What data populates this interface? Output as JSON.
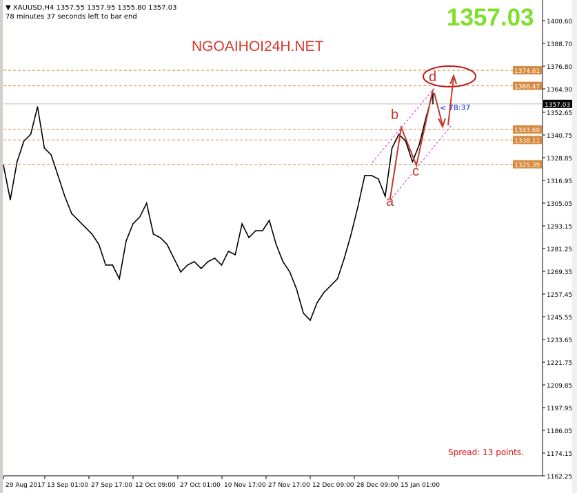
{
  "header": {
    "symbol_line": "XAUUSD,H4  1357.55 1357.95 1355.80 1357.03",
    "timer_line": "78 minutes 37 seconds left to bar end"
  },
  "watermark": "NGOAIHOI24H.NET",
  "big_price": "1357.03",
  "spread": "Spread: 13 points.",
  "bar_timer": "< 78:37",
  "wave_labels": {
    "a": "a",
    "b": "b",
    "c": "c",
    "d": "d"
  },
  "colors": {
    "level": "#d58a3f",
    "current": "#000000",
    "big_price": "#7fe02a",
    "annotation": "#c0392b",
    "channel": "#e020e0"
  },
  "chart_data": {
    "type": "line",
    "title": "XAUUSD,H4",
    "ylim": [
      1162.25,
      1400.6
    ],
    "y_ticks": [
      "1400.60",
      "1388.70",
      "1376.80",
      "1364.90",
      "1352.65",
      "1340.75",
      "1328.85",
      "1316.95",
      "1305.05",
      "1293.15",
      "1281.25",
      "1269.35",
      "1257.45",
      "1245.55",
      "1233.65",
      "1221.75",
      "1209.85",
      "1197.95",
      "1186.05",
      "1174.15",
      "1162.25"
    ],
    "x_ticks": [
      "29 Aug 2017",
      "13 Sep 01:00",
      "27 Sep 17:00",
      "12 Oct 09:00",
      "27 Oct 01:00",
      "10 Nov 17:00",
      "27 Nov 17:00",
      "12 Dec 09:00",
      "28 Dec 09:00",
      "15 Jan 01:00"
    ],
    "levels": [
      {
        "label": "1374.61",
        "value": 1374.61
      },
      {
        "label": "1366.47",
        "value": 1366.47
      },
      {
        "label": "1343.60",
        "value": 1343.6
      },
      {
        "label": "1338.11",
        "value": 1338.11
      },
      {
        "label": "1325.39",
        "value": 1325.39
      }
    ],
    "current": {
      "label": "1357.03",
      "value": 1357.03
    },
    "values": [
      1324.9,
      1306.8,
      1326.7,
      1337.5,
      1341.1,
      1355.5,
      1333.9,
      1330.3,
      1319.5,
      1308.6,
      1299.6,
      1296.0,
      1292.4,
      1288.8,
      1283.4,
      1272.6,
      1272.6,
      1265.4,
      1285.2,
      1294.2,
      1297.8,
      1305.0,
      1288.8,
      1287.0,
      1283.4,
      1276.2,
      1269.0,
      1272.6,
      1274.4,
      1270.8,
      1274.4,
      1276.2,
      1272.6,
      1279.8,
      1278.0,
      1294.2,
      1287.0,
      1290.6,
      1290.6,
      1296.0,
      1283.4,
      1274.4,
      1269.0,
      1260.0,
      1247.4,
      1243.7,
      1252.8,
      1258.2,
      1261.8,
      1265.4,
      1276.2,
      1288.8,
      1303.2,
      1319.5,
      1319.5,
      1317.7,
      1308.6,
      1333.9,
      1341.1,
      1337.5,
      1326.7,
      1335.7,
      1350.1,
      1362.7,
      1357.03
    ]
  }
}
